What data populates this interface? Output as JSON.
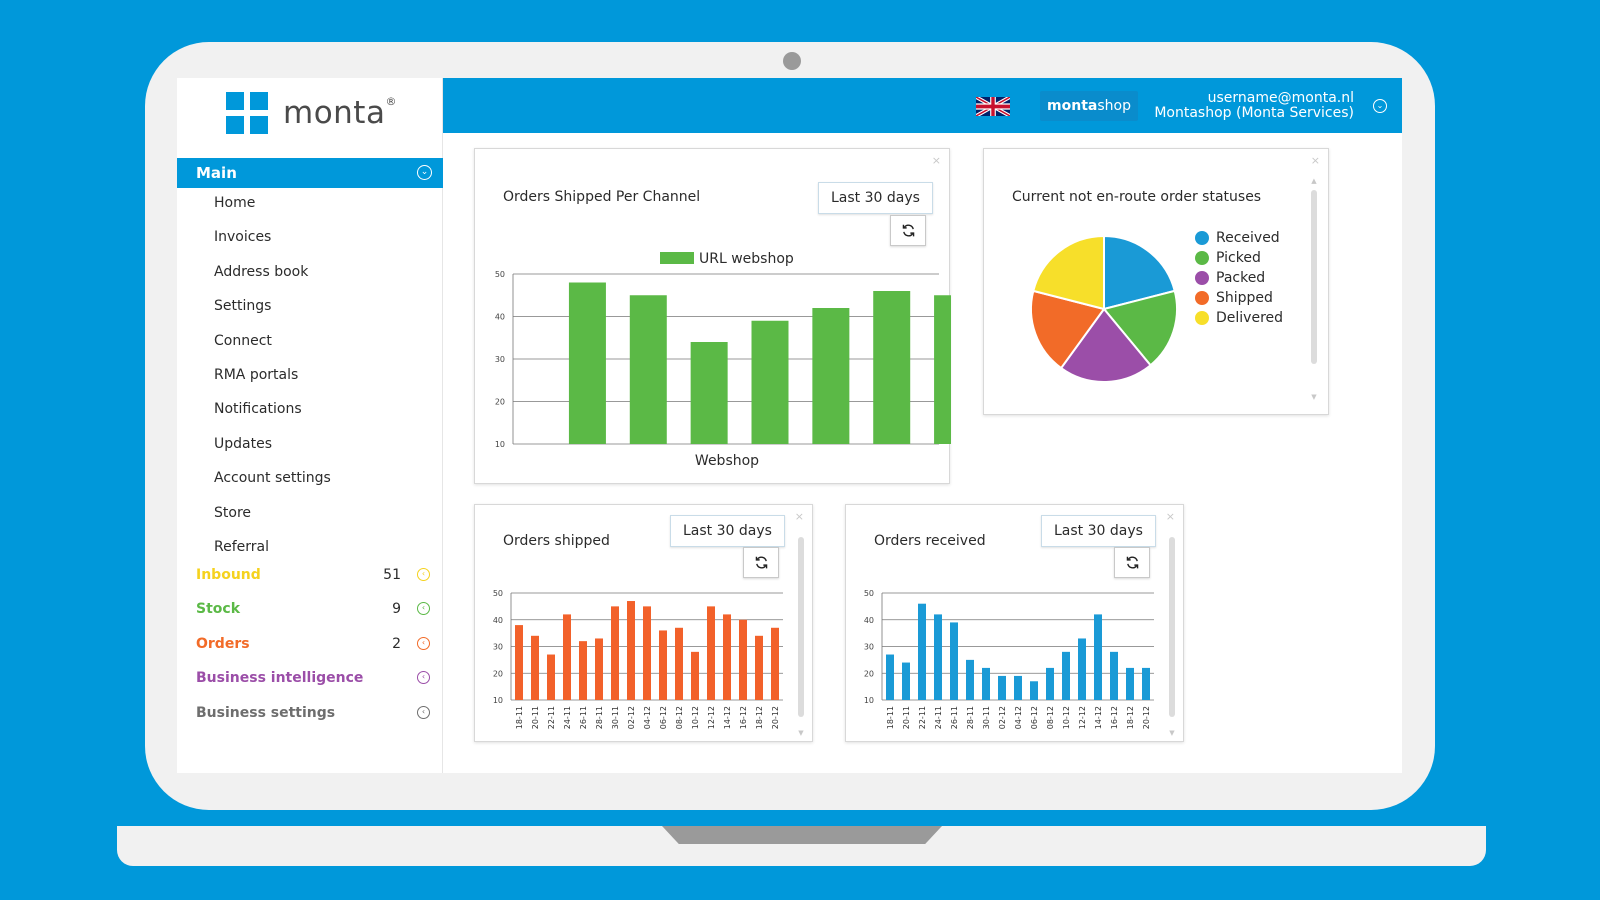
{
  "logo": {
    "text": "monta",
    "reg": "®"
  },
  "sidebar": {
    "main_label": "Main",
    "items": [
      "Home",
      "Invoices",
      "Address book",
      "Settings",
      "Connect",
      "RMA portals",
      "Notifications",
      "Updates",
      "Account settings",
      "Store",
      "Referral"
    ],
    "sections": [
      {
        "label": "Inbound",
        "count": "51",
        "color": "#f5d21e"
      },
      {
        "label": "Stock",
        "count": "9",
        "color": "#5bb946"
      },
      {
        "label": "Orders",
        "count": "2",
        "color": "#f26b28"
      },
      {
        "label": "Business intelligence",
        "count": "",
        "color": "#9b4ea8"
      },
      {
        "label": "Business settings",
        "count": "",
        "color": "#6e6e6e"
      }
    ]
  },
  "topbar": {
    "flag_icon": "uk-flag-icon",
    "shop_prefix": "monta",
    "shop_suffix": "shop",
    "user_email": "username@monta.nl",
    "user_company": "Montashop (Monta Services)"
  },
  "widgets": {
    "channel": {
      "title": "Orders Shipped Per Channel",
      "period": "Last 30 days",
      "close": "×"
    },
    "statuses": {
      "title": "Current not en-route order statuses",
      "close": "×"
    },
    "shipped": {
      "title": "Orders shipped",
      "period": "Last 30 days",
      "close": "×"
    },
    "received": {
      "title": "Orders received",
      "period": "Last 30 days",
      "close": "×"
    }
  },
  "chart_data": [
    {
      "type": "bar",
      "legend": [
        "URL webshop"
      ],
      "xlabel": "Webshop",
      "categories": [
        "",
        "",
        "",
        "",
        "",
        "",
        ""
      ],
      "series": [
        {
          "name": "URL webshop",
          "values": [
            48,
            45,
            34,
            39,
            42,
            46,
            45
          ]
        }
      ],
      "ylim": [
        10,
        50
      ],
      "yticks": [
        10,
        20,
        30,
        40,
        50
      ],
      "color": "#5bb946",
      "grid": true
    },
    {
      "type": "pie",
      "labels": [
        "Received",
        "Picked",
        "Packed",
        "Shipped",
        "Delivered"
      ],
      "values": [
        21,
        18,
        21,
        19,
        21
      ],
      "colors": [
        "#1a9ad6",
        "#5bb946",
        "#9b4ea8",
        "#f26b28",
        "#f7df2a"
      ],
      "legend": "right"
    },
    {
      "type": "bar",
      "categories": [
        "18-11",
        "20-11",
        "22-11",
        "24-11",
        "26-11",
        "28-11",
        "30-11",
        "02-12",
        "04-12",
        "06-12",
        "08-12",
        "10-12",
        "12-12",
        "14-12",
        "16-12",
        "18-12",
        "20-12"
      ],
      "values": [
        38,
        34,
        27,
        42,
        32,
        33,
        45,
        47,
        45,
        36,
        37,
        28,
        45,
        42,
        40,
        34,
        37
      ],
      "ylim": [
        10,
        50
      ],
      "yticks": [
        10,
        20,
        30,
        40,
        50
      ],
      "color": "#f2612a",
      "grid": true
    },
    {
      "type": "bar",
      "categories": [
        "18-11",
        "20-11",
        "22-11",
        "24-11",
        "26-11",
        "28-11",
        "30-11",
        "02-12",
        "04-12",
        "06-12",
        "08-12",
        "10-12",
        "12-12",
        "14-12",
        "16-12",
        "18-12",
        "20-12"
      ],
      "values": [
        27,
        24,
        46,
        42,
        39,
        25,
        22,
        19,
        19,
        17,
        22,
        28,
        33,
        42,
        28,
        22,
        22
      ],
      "ylim": [
        10,
        50
      ],
      "yticks": [
        10,
        20,
        30,
        40,
        50
      ],
      "color": "#1a9ad6",
      "grid": true
    }
  ]
}
